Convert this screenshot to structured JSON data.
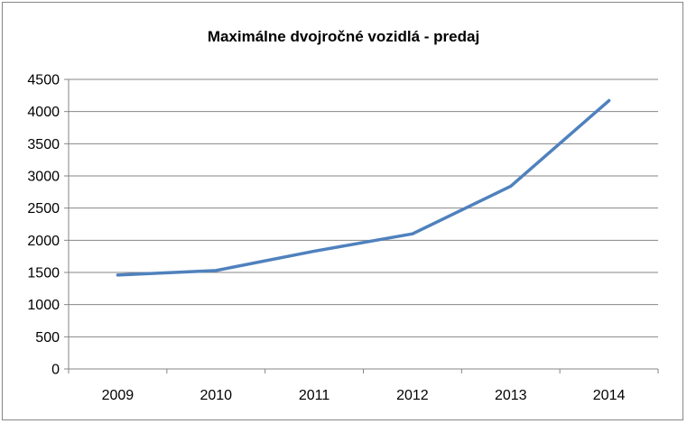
{
  "chart_data": {
    "type": "line",
    "title": "Maximálne dvojročné vozidlá - predaj",
    "xlabel": "",
    "ylabel": "",
    "categories": [
      "2009",
      "2010",
      "2011",
      "2012",
      "2013",
      "2014"
    ],
    "series": [
      {
        "values": [
          1460,
          1530,
          1830,
          2100,
          2840,
          4170
        ],
        "color": "#4F81BD"
      }
    ],
    "ylim": [
      0,
      4500
    ],
    "yticks": [
      0,
      500,
      1000,
      1500,
      2000,
      2500,
      3000,
      3500,
      4000,
      4500
    ],
    "grid": true,
    "legend": "none"
  }
}
